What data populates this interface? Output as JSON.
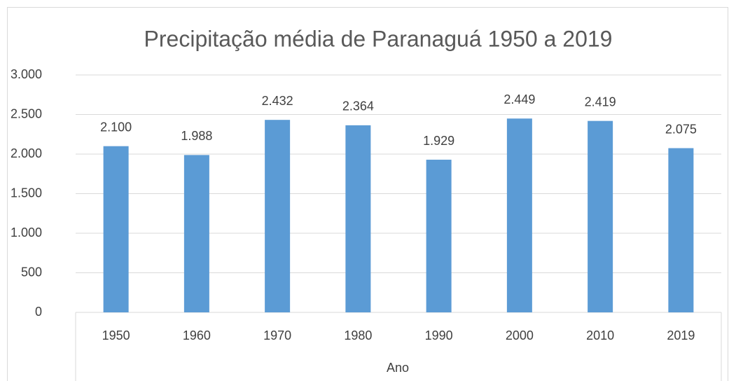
{
  "chart_data": {
    "type": "bar",
    "title": "Precipitação média de Paranaguá 1950 a 2019",
    "categories": [
      "1950",
      "1960",
      "1970",
      "1980",
      "1990",
      "2000",
      "2010",
      "2019"
    ],
    "values": [
      2100,
      1988,
      2432,
      2364,
      1929,
      2449,
      2419,
      2075
    ],
    "value_labels": [
      "2.100",
      "1.988",
      "2.432",
      "2.364",
      "1.929",
      "2.449",
      "2.419",
      "2.075"
    ],
    "color": "#5b9bd5",
    "xlabel": "Ano",
    "ylim": [
      0,
      3000
    ],
    "yticks": [
      0,
      500,
      {
        "value": 1000,
        "label": "1.000"
      },
      {
        "value": 1500,
        "label": "1.500"
      },
      {
        "value": 2000,
        "label": "2.000"
      },
      {
        "value": 2500,
        "label": "2.500"
      },
      {
        "value": 3000,
        "label": "3.000"
      }
    ],
    "grid": true
  }
}
